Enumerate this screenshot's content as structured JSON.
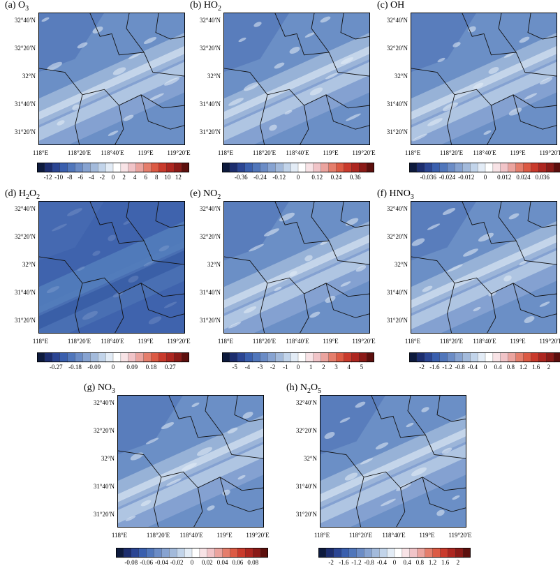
{
  "figure": {
    "panels": [
      {
        "label": "(a) O",
        "sub": "3",
        "title_after": "",
        "cb_labels": [
          "-12",
          "-10",
          "-8",
          "-6",
          "-4",
          "-2",
          "0",
          "2",
          "4",
          "6",
          "8",
          "10",
          "12"
        ],
        "shade": 0.55
      },
      {
        "label": "(b) HO",
        "sub": "2",
        "title_after": "",
        "cb_labels": [
          "-0.36",
          "-0.24",
          "-0.12",
          "0",
          "0.12",
          "0.24",
          "0.36"
        ],
        "shade": 0.45
      },
      {
        "label": "(c) OH",
        "sub": "",
        "title_after": "",
        "cb_labels": [
          "-0.036",
          "-0.024",
          "-0.012",
          "0",
          "0.012",
          "0.024",
          "0.036"
        ],
        "shade": 0.4
      },
      {
        "label": "(d) H",
        "sub": "2",
        "title_after": "O2",
        "cb_labels": [
          "-0.27",
          "-0.18",
          "-0.09",
          "0",
          "0.09",
          "0.18",
          "0.27"
        ],
        "shade": 0.8
      },
      {
        "label": "(e) NO",
        "sub": "2",
        "title_after": "",
        "cb_labels": [
          "-5",
          "-4",
          "-3",
          "-2",
          "-1",
          "0",
          "1",
          "2",
          "3",
          "4",
          "5"
        ],
        "shade": 0.4
      },
      {
        "label": "(f) HNO",
        "sub": "3",
        "title_after": "",
        "cb_labels": [
          "-2",
          "-1.6",
          "-1.2",
          "-0.8",
          "-0.4",
          "0",
          "0.4",
          "0.8",
          "1.2",
          "1.6",
          "2"
        ],
        "shade": 0.45
      },
      {
        "label": "(g) NO",
        "sub": "3",
        "title_after": "",
        "cb_labels": [
          "-0.08",
          "-0.06",
          "-0.04",
          "-0.02",
          "0",
          "0.02",
          "0.04",
          "0.06",
          "0.08"
        ],
        "shade": 0.45
      },
      {
        "label": "(h) N",
        "sub": "2",
        "title_after": "O5",
        "cb_labels": [
          "-2",
          "-1.6",
          "-1.2",
          "-0.8",
          "-0.4",
          "0",
          "0.4",
          "0.8",
          "1.2",
          "1.6",
          "2"
        ],
        "shade": 0.4
      }
    ],
    "y_ticks": [
      "32°40′N",
      "32°20′N",
      "32°N",
      "31°40′N",
      "31°20′N"
    ],
    "x_ticks": [
      "118°E",
      "118°20′E",
      "118°40′E",
      "119°E",
      "119°20′E"
    ],
    "colorscale": [
      "#0d1a3d",
      "#1c2d6e",
      "#2b4593",
      "#3a5fae",
      "#5076bb",
      "#6b8cc6",
      "#87a3d1",
      "#a3badb",
      "#c2d4ea",
      "#e3ecf6",
      "#ffffff",
      "#f8e3e6",
      "#f1c4c8",
      "#eba49f",
      "#e57e6c",
      "#dc5a44",
      "#c93a2c",
      "#ad2620",
      "#8b1a17",
      "#5c0f0d"
    ]
  },
  "chart_data": [
    {
      "type": "heatmap",
      "title": "(a) O3",
      "x_ticks": [
        "118°E",
        "118°20′E",
        "118°40′E",
        "119°E",
        "119°20′E"
      ],
      "y_ticks": [
        "32°40′N",
        "32°20′N",
        "32°N",
        "31°40′N",
        "31°20′N"
      ],
      "colorbar": [
        -12,
        -10,
        -8,
        -6,
        -4,
        -2,
        0,
        2,
        4,
        6,
        8,
        10,
        12
      ]
    },
    {
      "type": "heatmap",
      "title": "(b) HO2",
      "colorbar": [
        -0.36,
        -0.24,
        -0.12,
        0,
        0.12,
        0.24,
        0.36
      ]
    },
    {
      "type": "heatmap",
      "title": "(c) OH",
      "colorbar": [
        -0.036,
        -0.024,
        -0.012,
        0,
        0.012,
        0.024,
        0.036
      ]
    },
    {
      "type": "heatmap",
      "title": "(d) H2O2",
      "colorbar": [
        -0.27,
        -0.18,
        -0.09,
        0,
        0.09,
        0.18,
        0.27
      ]
    },
    {
      "type": "heatmap",
      "title": "(e) NO2",
      "colorbar": [
        -5,
        -4,
        -3,
        -2,
        -1,
        0,
        1,
        2,
        3,
        4,
        5
      ]
    },
    {
      "type": "heatmap",
      "title": "(f) HNO3",
      "colorbar": [
        -2,
        -1.6,
        -1.2,
        -0.8,
        -0.4,
        0,
        0.4,
        0.8,
        1.2,
        1.6,
        2
      ]
    },
    {
      "type": "heatmap",
      "title": "(g) NO3",
      "colorbar": [
        -0.08,
        -0.06,
        -0.04,
        -0.02,
        0,
        0.02,
        0.04,
        0.06,
        0.08
      ]
    },
    {
      "type": "heatmap",
      "title": "(h) N2O5",
      "colorbar": [
        -2,
        -1.6,
        -1.2,
        -0.8,
        -0.4,
        0,
        0.4,
        0.8,
        1.2,
        1.6,
        2
      ]
    }
  ]
}
